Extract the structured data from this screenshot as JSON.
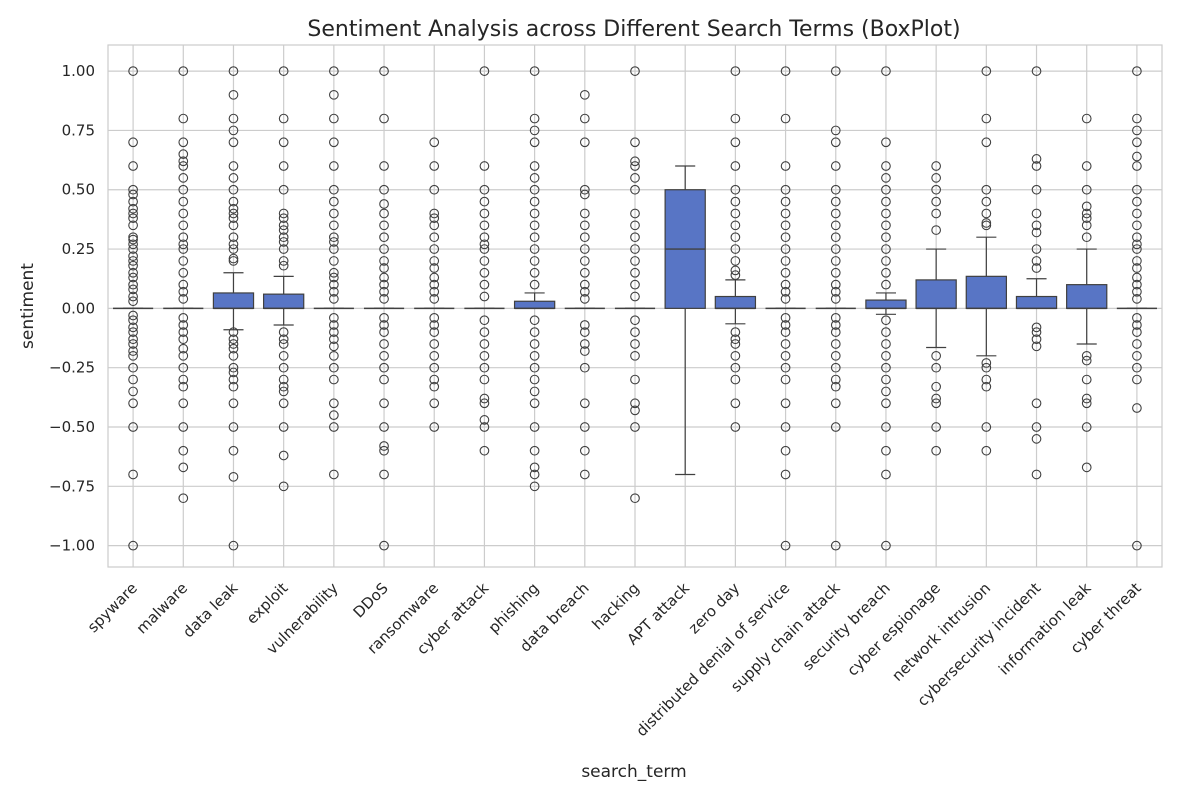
{
  "chart_data": {
    "type": "box",
    "title": "Sentiment Analysis across Different Search Terms (BoxPlot)",
    "xlabel": "search_term",
    "ylabel": "sentiment",
    "ylim": [
      -1.09,
      1.11
    ],
    "yticks": [
      -1.0,
      -0.75,
      -0.5,
      -0.25,
      0.0,
      0.25,
      0.5,
      0.75,
      1.0
    ],
    "ytick_labels": [
      "−1.00",
      "−0.75",
      "−0.50",
      "−0.25",
      "0.00",
      "0.25",
      "0.50",
      "0.75",
      "1.00"
    ],
    "grid": true,
    "box_color": "#5875c5",
    "line_color": "#404040",
    "categories": [
      "spyware",
      "malware",
      "data leak",
      "exploit",
      "vulnerability",
      "DDoS",
      "ransomware",
      "cyber attack",
      "phishing",
      "data breach",
      "hacking",
      "APT attack",
      "zero day",
      "distributed denial of service",
      "supply chain attack",
      "security breach",
      "cyber espionage",
      "network intrusion",
      "cybersecurity incident",
      "information leak",
      "cyber threat"
    ],
    "boxes": [
      {
        "q1": 0.0,
        "median": 0.0,
        "q3": 0.0,
        "whislo": 0.0,
        "whishi": 0.0,
        "fliers": [
          1.0,
          0.7,
          0.6,
          0.5,
          0.48,
          0.45,
          0.42,
          0.4,
          0.38,
          0.35,
          0.3,
          0.29,
          0.27,
          0.25,
          0.22,
          0.2,
          0.18,
          0.15,
          0.13,
          0.1,
          0.08,
          0.05,
          0.03,
          -0.03,
          -0.05,
          -0.08,
          -0.1,
          -0.13,
          -0.15,
          -0.18,
          -0.2,
          -0.25,
          -0.3,
          -0.35,
          -0.4,
          -0.5,
          -0.7,
          -1.0
        ]
      },
      {
        "q1": 0.0,
        "median": 0.0,
        "q3": 0.0,
        "whislo": 0.0,
        "whishi": 0.0,
        "fliers": [
          1.0,
          0.8,
          0.7,
          0.65,
          0.62,
          0.6,
          0.55,
          0.5,
          0.45,
          0.4,
          0.35,
          0.3,
          0.27,
          0.25,
          0.2,
          0.15,
          0.1,
          0.07,
          0.04,
          -0.04,
          -0.07,
          -0.1,
          -0.13,
          -0.17,
          -0.2,
          -0.25,
          -0.3,
          -0.33,
          -0.4,
          -0.5,
          -0.6,
          -0.67,
          -0.8
        ]
      },
      {
        "q1": 0.0,
        "median": 0.0,
        "q3": 0.065,
        "whislo": -0.09,
        "whishi": 0.15,
        "fliers": [
          1.0,
          0.9,
          0.8,
          0.75,
          0.7,
          0.6,
          0.55,
          0.5,
          0.45,
          0.42,
          0.4,
          0.38,
          0.35,
          0.3,
          0.27,
          0.25,
          0.21,
          0.2,
          -0.1,
          -0.13,
          -0.15,
          -0.17,
          -0.2,
          -0.25,
          -0.27,
          -0.3,
          -0.33,
          -0.4,
          -0.5,
          -0.6,
          -0.71,
          -1.0
        ]
      },
      {
        "q1": 0.0,
        "median": 0.0,
        "q3": 0.06,
        "whislo": -0.07,
        "whishi": 0.135,
        "fliers": [
          1.0,
          0.8,
          0.7,
          0.6,
          0.5,
          0.4,
          0.38,
          0.35,
          0.33,
          0.3,
          0.28,
          0.25,
          0.2,
          0.18,
          -0.1,
          -0.13,
          -0.15,
          -0.2,
          -0.25,
          -0.3,
          -0.33,
          -0.35,
          -0.4,
          -0.5,
          -0.62,
          -0.75
        ]
      },
      {
        "q1": 0.0,
        "median": 0.0,
        "q3": 0.0,
        "whislo": 0.0,
        "whishi": 0.0,
        "fliers": [
          1.0,
          0.9,
          0.8,
          0.7,
          0.6,
          0.5,
          0.45,
          0.4,
          0.35,
          0.3,
          0.28,
          0.25,
          0.2,
          0.15,
          0.13,
          0.1,
          0.07,
          0.04,
          -0.04,
          -0.07,
          -0.1,
          -0.13,
          -0.16,
          -0.2,
          -0.25,
          -0.3,
          -0.4,
          -0.45,
          -0.5,
          -0.7
        ]
      },
      {
        "q1": 0.0,
        "median": 0.0,
        "q3": 0.0,
        "whislo": 0.0,
        "whishi": 0.0,
        "fliers": [
          1.0,
          0.8,
          0.6,
          0.5,
          0.44,
          0.4,
          0.35,
          0.3,
          0.25,
          0.2,
          0.17,
          0.13,
          0.1,
          0.07,
          0.04,
          -0.04,
          -0.07,
          -0.1,
          -0.15,
          -0.2,
          -0.25,
          -0.3,
          -0.4,
          -0.5,
          -0.58,
          -0.6,
          -0.7,
          -1.0
        ]
      },
      {
        "q1": 0.0,
        "median": 0.0,
        "q3": 0.0,
        "whislo": 0.0,
        "whishi": 0.0,
        "fliers": [
          0.7,
          0.6,
          0.5,
          0.4,
          0.38,
          0.35,
          0.3,
          0.25,
          0.2,
          0.17,
          0.13,
          0.1,
          0.07,
          0.04,
          -0.04,
          -0.07,
          -0.1,
          -0.15,
          -0.2,
          -0.25,
          -0.3,
          -0.33,
          -0.4,
          -0.5
        ]
      },
      {
        "q1": 0.0,
        "median": 0.0,
        "q3": 0.0,
        "whislo": 0.0,
        "whishi": 0.0,
        "fliers": [
          1.0,
          0.6,
          0.5,
          0.45,
          0.4,
          0.35,
          0.3,
          0.27,
          0.25,
          0.2,
          0.15,
          0.1,
          0.05,
          -0.05,
          -0.1,
          -0.15,
          -0.2,
          -0.25,
          -0.3,
          -0.38,
          -0.4,
          -0.47,
          -0.5,
          -0.6
        ]
      },
      {
        "q1": 0.0,
        "median": 0.0,
        "q3": 0.03,
        "whislo": 0.0,
        "whishi": 0.065,
        "fliers": [
          1.0,
          0.8,
          0.75,
          0.7,
          0.6,
          0.55,
          0.5,
          0.45,
          0.4,
          0.35,
          0.3,
          0.25,
          0.2,
          0.15,
          0.1,
          -0.05,
          -0.1,
          -0.15,
          -0.2,
          -0.25,
          -0.3,
          -0.35,
          -0.4,
          -0.5,
          -0.6,
          -0.67,
          -0.7,
          -0.75
        ]
      },
      {
        "q1": 0.0,
        "median": 0.0,
        "q3": 0.0,
        "whislo": 0.0,
        "whishi": 0.0,
        "fliers": [
          0.9,
          0.8,
          0.7,
          0.5,
          0.48,
          0.4,
          0.35,
          0.3,
          0.25,
          0.2,
          0.15,
          0.1,
          0.07,
          0.04,
          -0.07,
          -0.1,
          -0.15,
          -0.18,
          -0.25,
          -0.4,
          -0.5,
          -0.6,
          -0.7
        ]
      },
      {
        "q1": 0.0,
        "median": 0.0,
        "q3": 0.0,
        "whislo": 0.0,
        "whishi": 0.0,
        "fliers": [
          1.0,
          0.7,
          0.62,
          0.6,
          0.55,
          0.5,
          0.4,
          0.35,
          0.3,
          0.25,
          0.2,
          0.15,
          0.1,
          0.05,
          -0.05,
          -0.1,
          -0.15,
          -0.2,
          -0.3,
          -0.4,
          -0.43,
          -0.5,
          -0.8
        ]
      },
      {
        "q1": 0.0,
        "median": 0.25,
        "q3": 0.5,
        "whislo": -0.7,
        "whishi": 0.6,
        "fliers": []
      },
      {
        "q1": 0.0,
        "median": 0.0,
        "q3": 0.05,
        "whislo": -0.065,
        "whishi": 0.12,
        "fliers": [
          1.0,
          0.8,
          0.7,
          0.6,
          0.5,
          0.45,
          0.4,
          0.35,
          0.3,
          0.25,
          0.2,
          0.16,
          0.14,
          -0.1,
          -0.13,
          -0.15,
          -0.2,
          -0.25,
          -0.3,
          -0.4,
          -0.5
        ]
      },
      {
        "q1": 0.0,
        "median": 0.0,
        "q3": 0.0,
        "whislo": 0.0,
        "whishi": 0.0,
        "fliers": [
          1.0,
          0.8,
          0.6,
          0.5,
          0.45,
          0.4,
          0.35,
          0.3,
          0.25,
          0.2,
          0.15,
          0.1,
          0.07,
          0.04,
          -0.04,
          -0.07,
          -0.1,
          -0.15,
          -0.2,
          -0.25,
          -0.3,
          -0.4,
          -0.5,
          -0.6,
          -0.7,
          -1.0
        ]
      },
      {
        "q1": 0.0,
        "median": 0.0,
        "q3": 0.0,
        "whislo": 0.0,
        "whishi": 0.0,
        "fliers": [
          1.0,
          0.75,
          0.7,
          0.6,
          0.5,
          0.45,
          0.4,
          0.35,
          0.3,
          0.25,
          0.2,
          0.15,
          0.1,
          0.07,
          0.04,
          -0.04,
          -0.07,
          -0.1,
          -0.15,
          -0.2,
          -0.25,
          -0.3,
          -0.33,
          -0.4,
          -0.5,
          -1.0
        ]
      },
      {
        "q1": 0.0,
        "median": 0.0,
        "q3": 0.035,
        "whislo": -0.025,
        "whishi": 0.065,
        "fliers": [
          1.0,
          0.7,
          0.6,
          0.55,
          0.5,
          0.45,
          0.4,
          0.35,
          0.3,
          0.25,
          0.2,
          0.15,
          0.1,
          -0.05,
          -0.1,
          -0.15,
          -0.2,
          -0.25,
          -0.3,
          -0.35,
          -0.4,
          -0.5,
          -0.6,
          -0.7,
          -1.0
        ]
      },
      {
        "q1": 0.0,
        "median": 0.0,
        "q3": 0.12,
        "whislo": -0.165,
        "whishi": 0.25,
        "fliers": [
          0.6,
          0.55,
          0.5,
          0.45,
          0.4,
          0.33,
          -0.2,
          -0.25,
          -0.33,
          -0.38,
          -0.4,
          -0.5,
          -0.6
        ]
      },
      {
        "q1": 0.0,
        "median": 0.0,
        "q3": 0.135,
        "whislo": -0.2,
        "whishi": 0.3,
        "fliers": [
          1.0,
          0.8,
          0.7,
          0.5,
          0.45,
          0.4,
          0.36,
          0.35,
          -0.23,
          -0.25,
          -0.3,
          -0.33,
          -0.5,
          -0.6
        ]
      },
      {
        "q1": 0.0,
        "median": 0.0,
        "q3": 0.05,
        "whislo": 0.0,
        "whishi": 0.125,
        "fliers": [
          1.0,
          0.63,
          0.6,
          0.5,
          0.4,
          0.35,
          0.32,
          0.25,
          0.2,
          0.17,
          -0.08,
          -0.1,
          -0.13,
          -0.16,
          -0.4,
          -0.5,
          -0.55,
          -0.7
        ]
      },
      {
        "q1": 0.0,
        "median": 0.0,
        "q3": 0.1,
        "whislo": -0.15,
        "whishi": 0.25,
        "fliers": [
          0.8,
          0.6,
          0.5,
          0.43,
          0.4,
          0.38,
          0.35,
          0.3,
          -0.2,
          -0.22,
          -0.3,
          -0.38,
          -0.4,
          -0.5,
          -0.67
        ]
      },
      {
        "q1": 0.0,
        "median": 0.0,
        "q3": 0.0,
        "whislo": 0.0,
        "whishi": 0.0,
        "fliers": [
          1.0,
          0.8,
          0.75,
          0.7,
          0.64,
          0.6,
          0.5,
          0.45,
          0.4,
          0.35,
          0.3,
          0.27,
          0.25,
          0.2,
          0.17,
          0.13,
          0.1,
          0.07,
          0.04,
          -0.04,
          -0.07,
          -0.1,
          -0.15,
          -0.2,
          -0.25,
          -0.3,
          -0.42,
          -1.0
        ]
      }
    ]
  }
}
